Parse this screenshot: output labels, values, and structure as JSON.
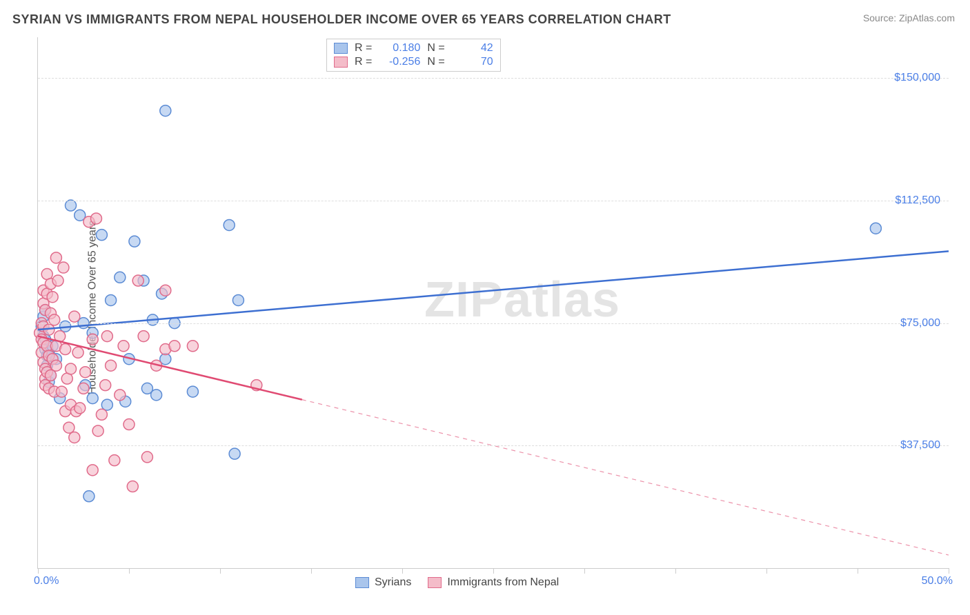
{
  "title": "SYRIAN VS IMMIGRANTS FROM NEPAL HOUSEHOLDER INCOME OVER 65 YEARS CORRELATION CHART",
  "source": "Source: ZipAtlas.com",
  "ylabel": "Householder Income Over 65 years",
  "watermark": "ZIPatlas",
  "chart": {
    "type": "scatter",
    "xlim": [
      0,
      50
    ],
    "ylim": [
      0,
      162500
    ],
    "xlim_labels": {
      "min": "0.0%",
      "max": "50.0%"
    },
    "xticks_pct": [
      0,
      5,
      10,
      15,
      20,
      25,
      30,
      35,
      40,
      45,
      50
    ],
    "yticks": [
      {
        "value": 37500,
        "label": "$37,500"
      },
      {
        "value": 75000,
        "label": "$75,000"
      },
      {
        "value": 112500,
        "label": "$112,500"
      },
      {
        "value": 150000,
        "label": "$150,000"
      }
    ],
    "background_color": "#ffffff",
    "grid_color": "#dddddd",
    "axis_color": "#cccccc",
    "ticklabel_color": "#4a7ee6",
    "marker_radius": 8,
    "marker_stroke_width": 1.5,
    "line_width": 2.5,
    "series": [
      {
        "name": "Syrians",
        "fill_color": "#a9c5ec",
        "stroke_color": "#5b8bd4",
        "line_color": "#3d6fd1",
        "R": "0.180",
        "N": "42",
        "regression": {
          "x1_pct": 0,
          "y1": 73000,
          "x2_pct": 50,
          "y2": 97000,
          "solid_to_pct": 50
        },
        "points": [
          {
            "x": 0.2,
            "y": 74000
          },
          {
            "x": 0.3,
            "y": 71000
          },
          {
            "x": 0.3,
            "y": 77000
          },
          {
            "x": 0.4,
            "y": 67000
          },
          {
            "x": 0.4,
            "y": 70000
          },
          {
            "x": 0.4,
            "y": 79000
          },
          {
            "x": 0.5,
            "y": 62000
          },
          {
            "x": 0.5,
            "y": 65000
          },
          {
            "x": 0.6,
            "y": 66000
          },
          {
            "x": 0.6,
            "y": 57000
          },
          {
            "x": 0.7,
            "y": 59000
          },
          {
            "x": 0.8,
            "y": 68000
          },
          {
            "x": 1.0,
            "y": 64000
          },
          {
            "x": 1.2,
            "y": 52000
          },
          {
            "x": 1.5,
            "y": 74000
          },
          {
            "x": 1.8,
            "y": 111000
          },
          {
            "x": 2.3,
            "y": 108000
          },
          {
            "x": 2.5,
            "y": 75000
          },
          {
            "x": 2.6,
            "y": 56000
          },
          {
            "x": 2.8,
            "y": 22000
          },
          {
            "x": 3.0,
            "y": 52000
          },
          {
            "x": 3.0,
            "y": 72000
          },
          {
            "x": 3.5,
            "y": 102000
          },
          {
            "x": 3.8,
            "y": 50000
          },
          {
            "x": 4.0,
            "y": 82000
          },
          {
            "x": 4.5,
            "y": 89000
          },
          {
            "x": 4.8,
            "y": 51000
          },
          {
            "x": 5.0,
            "y": 64000
          },
          {
            "x": 5.3,
            "y": 100000
          },
          {
            "x": 5.8,
            "y": 88000
          },
          {
            "x": 6.0,
            "y": 55000
          },
          {
            "x": 6.3,
            "y": 76000
          },
          {
            "x": 6.5,
            "y": 53000
          },
          {
            "x": 6.8,
            "y": 84000
          },
          {
            "x": 7.0,
            "y": 64000
          },
          {
            "x": 7.0,
            "y": 140000
          },
          {
            "x": 7.5,
            "y": 75000
          },
          {
            "x": 8.5,
            "y": 54000
          },
          {
            "x": 10.5,
            "y": 105000
          },
          {
            "x": 10.8,
            "y": 35000
          },
          {
            "x": 11.0,
            "y": 82000
          },
          {
            "x": 46.0,
            "y": 104000
          }
        ]
      },
      {
        "name": "Immigrants from Nepal",
        "fill_color": "#f4bcc9",
        "stroke_color": "#e06a8a",
        "line_color": "#e04a72",
        "R": "-0.256",
        "N": "70",
        "regression": {
          "x1_pct": 0,
          "y1": 71000,
          "x2_pct": 50,
          "y2": 4000,
          "solid_to_pct": 14.5
        },
        "points": [
          {
            "x": 0.1,
            "y": 72000
          },
          {
            "x": 0.2,
            "y": 70000
          },
          {
            "x": 0.2,
            "y": 75000
          },
          {
            "x": 0.2,
            "y": 66000
          },
          {
            "x": 0.3,
            "y": 81000
          },
          {
            "x": 0.3,
            "y": 63000
          },
          {
            "x": 0.3,
            "y": 69000
          },
          {
            "x": 0.3,
            "y": 74000
          },
          {
            "x": 0.3,
            "y": 85000
          },
          {
            "x": 0.4,
            "y": 61000
          },
          {
            "x": 0.4,
            "y": 79000
          },
          {
            "x": 0.4,
            "y": 58000
          },
          {
            "x": 0.4,
            "y": 56000
          },
          {
            "x": 0.5,
            "y": 84000
          },
          {
            "x": 0.5,
            "y": 68000
          },
          {
            "x": 0.5,
            "y": 90000
          },
          {
            "x": 0.5,
            "y": 60000
          },
          {
            "x": 0.6,
            "y": 65000
          },
          {
            "x": 0.6,
            "y": 55000
          },
          {
            "x": 0.6,
            "y": 73000
          },
          {
            "x": 0.7,
            "y": 87000
          },
          {
            "x": 0.7,
            "y": 78000
          },
          {
            "x": 0.7,
            "y": 59000
          },
          {
            "x": 0.8,
            "y": 83000
          },
          {
            "x": 0.8,
            "y": 64000
          },
          {
            "x": 0.9,
            "y": 54000
          },
          {
            "x": 0.9,
            "y": 76000
          },
          {
            "x": 1.0,
            "y": 68000
          },
          {
            "x": 1.0,
            "y": 95000
          },
          {
            "x": 1.0,
            "y": 62000
          },
          {
            "x": 1.1,
            "y": 88000
          },
          {
            "x": 1.2,
            "y": 71000
          },
          {
            "x": 1.3,
            "y": 54000
          },
          {
            "x": 1.4,
            "y": 92000
          },
          {
            "x": 1.5,
            "y": 48000
          },
          {
            "x": 1.5,
            "y": 67000
          },
          {
            "x": 1.6,
            "y": 58000
          },
          {
            "x": 1.7,
            "y": 43000
          },
          {
            "x": 1.8,
            "y": 50000
          },
          {
            "x": 1.8,
            "y": 61000
          },
          {
            "x": 2.0,
            "y": 40000
          },
          {
            "x": 2.0,
            "y": 77000
          },
          {
            "x": 2.1,
            "y": 48000
          },
          {
            "x": 2.2,
            "y": 66000
          },
          {
            "x": 2.3,
            "y": 49000
          },
          {
            "x": 2.5,
            "y": 55000
          },
          {
            "x": 2.6,
            "y": 60000
          },
          {
            "x": 2.8,
            "y": 106000
          },
          {
            "x": 3.0,
            "y": 30000
          },
          {
            "x": 3.0,
            "y": 70000
          },
          {
            "x": 3.2,
            "y": 107000
          },
          {
            "x": 3.3,
            "y": 42000
          },
          {
            "x": 3.5,
            "y": 47000
          },
          {
            "x": 3.7,
            "y": 56000
          },
          {
            "x": 3.8,
            "y": 71000
          },
          {
            "x": 4.0,
            "y": 62000
          },
          {
            "x": 4.2,
            "y": 33000
          },
          {
            "x": 4.5,
            "y": 53000
          },
          {
            "x": 4.7,
            "y": 68000
          },
          {
            "x": 5.0,
            "y": 44000
          },
          {
            "x": 5.2,
            "y": 25000
          },
          {
            "x": 5.5,
            "y": 88000
          },
          {
            "x": 5.8,
            "y": 71000
          },
          {
            "x": 6.0,
            "y": 34000
          },
          {
            "x": 6.5,
            "y": 62000
          },
          {
            "x": 7.0,
            "y": 67000
          },
          {
            "x": 7.0,
            "y": 85000
          },
          {
            "x": 7.5,
            "y": 68000
          },
          {
            "x": 8.5,
            "y": 68000
          },
          {
            "x": 12.0,
            "y": 56000
          }
        ]
      }
    ]
  },
  "legend_labels": {
    "R_prefix": "R = ",
    "N_prefix": "N = "
  }
}
